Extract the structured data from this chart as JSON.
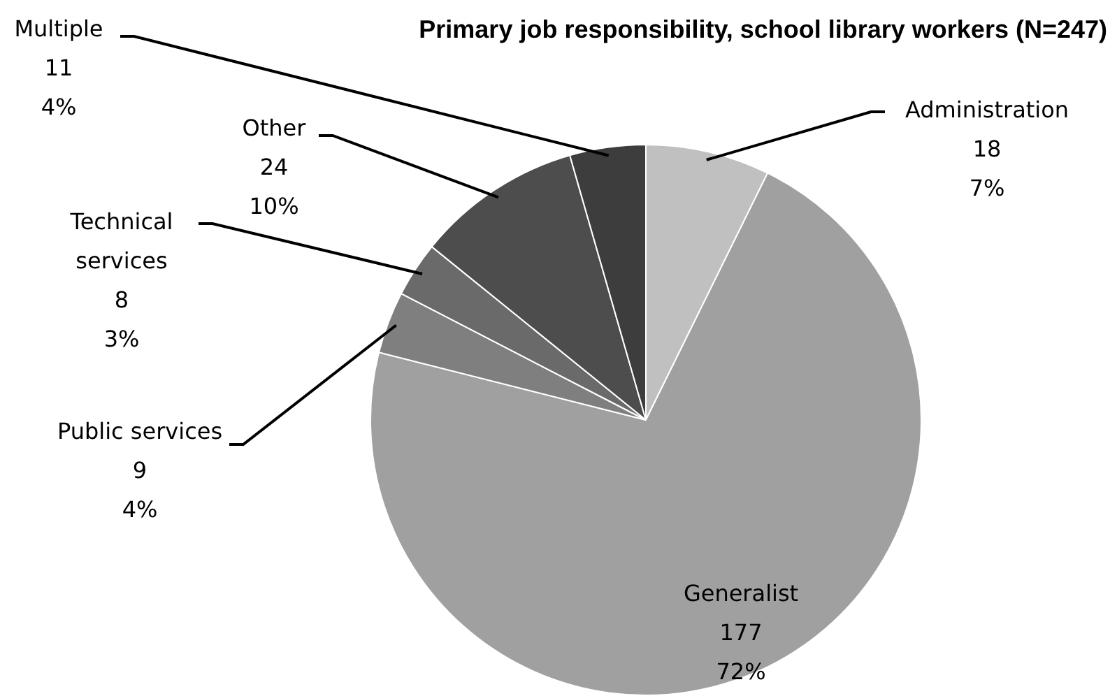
{
  "chart_data": {
    "type": "pie",
    "title": "Primary job responsibility, school library workers (N=247)",
    "categories": [
      "Administration",
      "Generalist",
      "Public services",
      "Technical services",
      "Other",
      "Multiple"
    ],
    "values": [
      18,
      177,
      9,
      8,
      24,
      11
    ],
    "colors": [
      "#c0c0c0",
      "#a0a0a0",
      "#7f7f7f",
      "#6a6a6a",
      "#4d4d4d",
      "#3d3d3d"
    ],
    "value_labels": [
      "18\n7%",
      "177\n72%",
      "9\n4%",
      "8\n3%",
      "24\n10%",
      "11\n4%"
    ],
    "legend": false
  }
}
